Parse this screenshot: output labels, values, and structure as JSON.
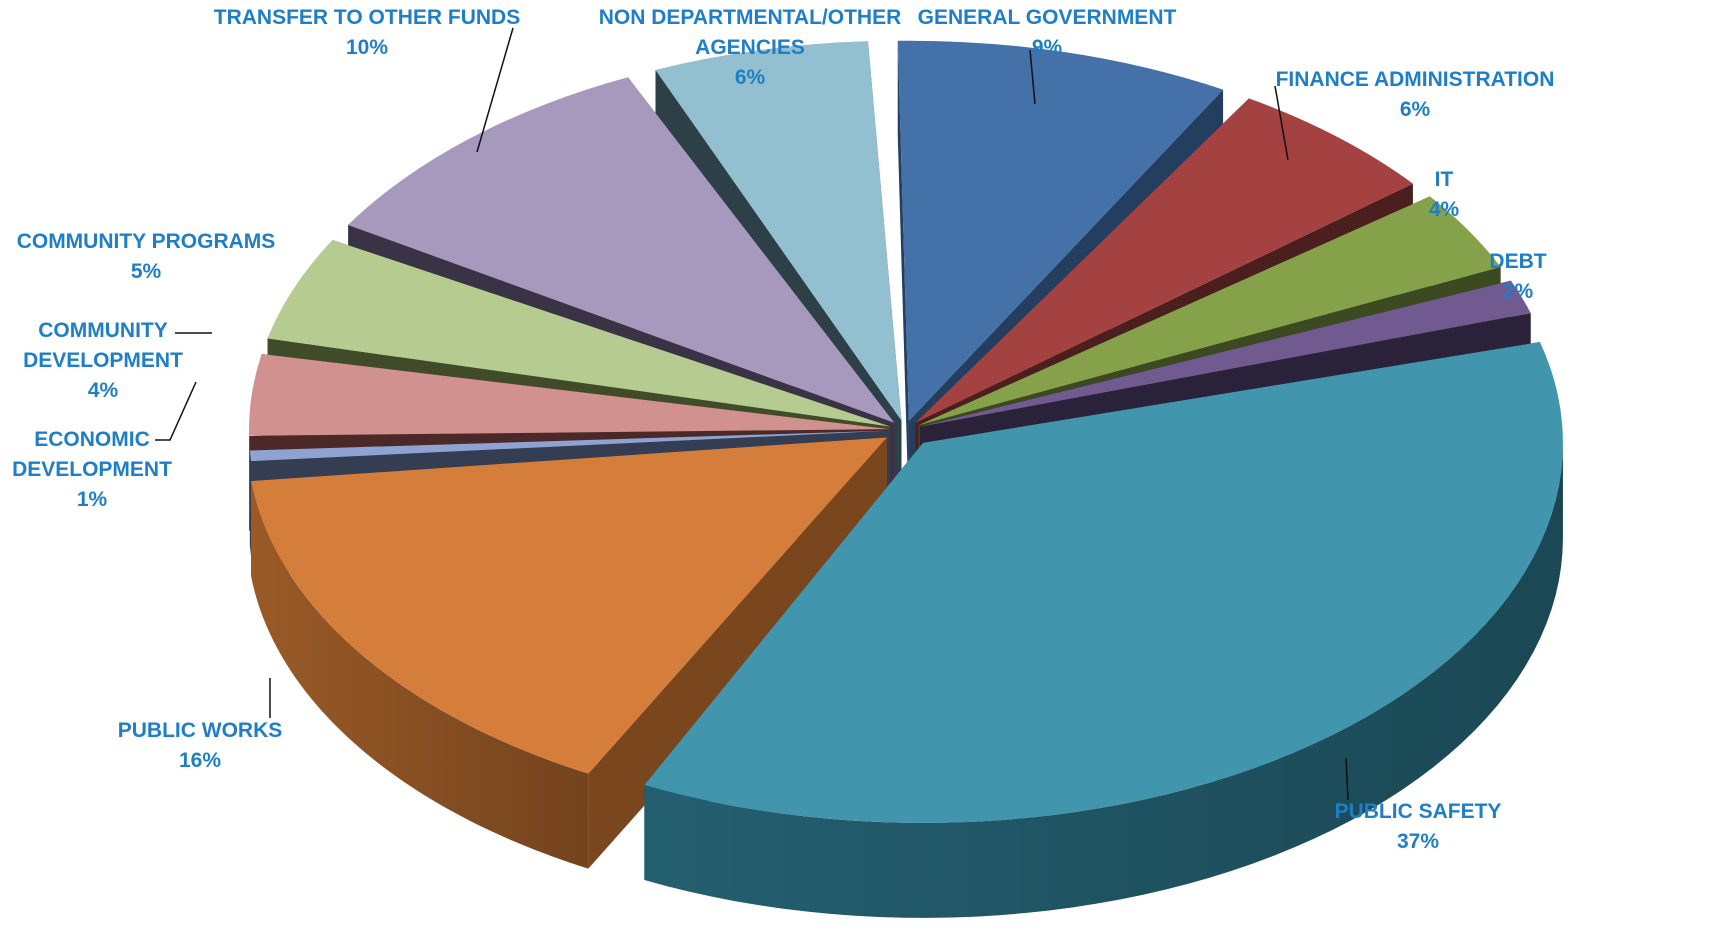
{
  "chart_data": {
    "type": "pie",
    "style": "3d-exploded",
    "title": "",
    "slices": [
      {
        "label_lines": [
          "GENERAL  GOVERNMENT"
        ],
        "value_label": "9%",
        "value": 9,
        "color": "#4571a9",
        "side": "#2c4b72",
        "base": "#243e60"
      },
      {
        "label_lines": [
          "FINANCE ADMINISTRATION"
        ],
        "value_label": "6%",
        "value": 6,
        "color": "#a34240",
        "side": "#6a2b2a",
        "base": "#4a1f1e"
      },
      {
        "label_lines": [
          "IT"
        ],
        "value_label": "4%",
        "value": 4,
        "color": "#85a24a",
        "side": "#56692f",
        "base": "#3b4a21"
      },
      {
        "label_lines": [
          "DEBT"
        ],
        "value_label": "2%",
        "value": 2,
        "color": "#705a90",
        "side": "#3f3354",
        "base": "#2a2238"
      },
      {
        "label_lines": [
          "PUBLIC  SAFETY"
        ],
        "value_label": "37%",
        "value": 37,
        "color": "#4196ad",
        "side": "#245f70",
        "base": "#1a3d4a"
      },
      {
        "label_lines": [
          "PUBLIC  WORKS"
        ],
        "value_label": "16%",
        "value": 16,
        "color": "#d57e3b",
        "side": "#9a5a27",
        "base": "#7a461e"
      },
      {
        "label_lines": [
          "ECONOMIC",
          "DEVELOPMENT"
        ],
        "value_label": "1%",
        "value": 1,
        "color": "#8ea3d1",
        "side": "#3e4658",
        "base": "#343d52"
      },
      {
        "label_lines": [
          "COMMUNITY",
          "DEVELOPMENT"
        ],
        "value_label": "4%",
        "value": 4,
        "color": "#d0918f",
        "side": "#6b3a39",
        "base": "#4b2928"
      },
      {
        "label_lines": [
          "COMMUNITY  PROGRAMS"
        ],
        "value_label": "5%",
        "value": 5,
        "color": "#b6cb90",
        "side": "#55633a",
        "base": "#404b2a"
      },
      {
        "label_lines": [
          "TRANSFER  TO  OTHER  FUNDS"
        ],
        "value_label": "10%",
        "value": 10,
        "color": "#a799bd",
        "side": "#4a4256",
        "base": "#3a3346"
      },
      {
        "label_lines": [
          "NON  DEPARTMENTAL/OTHER",
          "AGENCIES"
        ],
        "value_label": "6%",
        "value": 6,
        "color": "#92c0d1",
        "side": "#3a4f57",
        "base": "#2e4047"
      }
    ]
  }
}
